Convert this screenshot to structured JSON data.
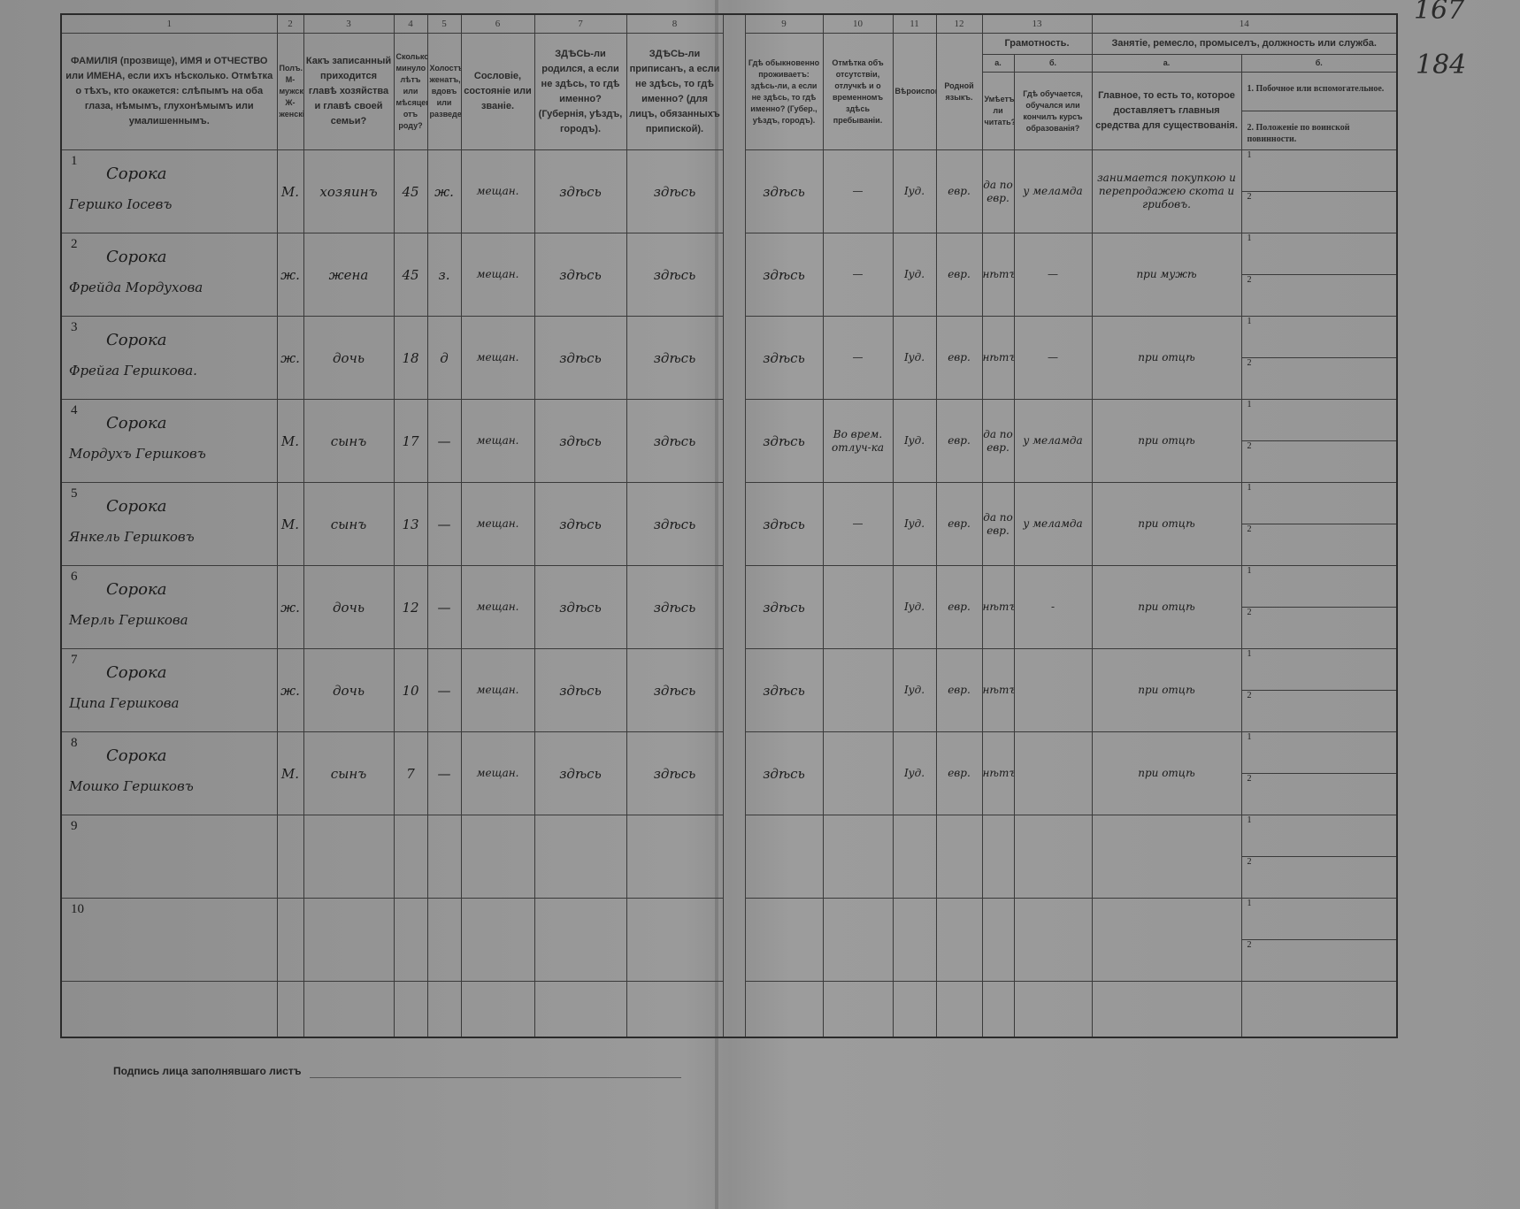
{
  "page_numbers": {
    "top": "167",
    "side": "184"
  },
  "header": {
    "col_numbers": [
      "1",
      "2",
      "3",
      "4",
      "5",
      "6",
      "7",
      "8",
      "9",
      "10",
      "11",
      "12",
      "13",
      "14"
    ],
    "c1": "ФАМИЛІЯ (прозвище), ИМЯ и ОТЧЕСТВО или ИМЕНА, если ихъ нѣсколько. Отмѣтка о тѣхъ, кто окажется: слѣпымъ на оба глаза, нѣмымъ, глухонѣмымъ или умалишеннымъ.",
    "c2": "Полъ. М-мужской. Ж-женскій.",
    "c3": "Какъ записанный приходится главѣ хозяйства и главѣ своей семьи?",
    "c4": "Сколько минуло лѣтъ или мѣсяцевъ отъ роду?",
    "c5": "Холостъ, женатъ, вдовъ или разведенъ.",
    "c6": "Сословіе, состояніе или званіе.",
    "c7": "ЗДѢСЬ-ли родился, а если не здѣсь, то гдѣ именно? (Губернія, уѣздъ, городъ).",
    "c8": "ЗДѢСЬ-ли приписанъ, а если не здѣсь, то гдѣ именно? (для лицъ, обязанныхъ припиской).",
    "c9": "Гдѣ обыкновенно проживаетъ: здѣсь-ли, а если не здѣсь, то гдѣ именно? (Губер., уѣздъ, городъ).",
    "c10": "Отмѣтка объ отсутствіи, отлучкѣ и о временномъ здѣсь пребываніи.",
    "c11": "Вѣроисповѣданіе.",
    "c12": "Родной языкъ.",
    "c13": "Грамотность.",
    "c13a_letter": "а.",
    "c13b_letter": "б.",
    "c13a": "Умѣетъ-ли читать?",
    "c13b": "Гдѣ обучается, обучался или кончилъ курсъ образованія?",
    "c14": "Занятіе, ремесло, промыселъ, должность или служба.",
    "c14a_letter": "а.",
    "c14b_letter": "б.",
    "c14a": "Главное, то есть то, которое доставляетъ главныя средства для существованія.",
    "c14b_1": "1. Побочное или вспомогательное.",
    "c14b_2": "2. Положеніе по воинской повинности."
  },
  "sub_labels": [
    "1",
    "2"
  ],
  "rows": [
    {
      "n": "1",
      "surname": "Сорока",
      "name": "Гершко Іосевъ",
      "sex": "М.",
      "relation": "хозяинъ",
      "age": "45",
      "marital": "ж.",
      "estate": "мещан.",
      "born": "здѣсь",
      "registered": "здѣсь",
      "resides": "здѣсь",
      "absence": "—",
      "religion": "Іуд.",
      "language": "евр.",
      "literate": "да по евр.",
      "education": "у меламда",
      "occupation": "занимается покупкою и перепродажею скота и грибовъ."
    },
    {
      "n": "2",
      "surname": "Сорока",
      "name": "Фрейда Мордухова",
      "sex": "ж.",
      "relation": "жена",
      "age": "45",
      "marital": "з.",
      "estate": "мещан.",
      "born": "здѣсь",
      "registered": "здѣсь",
      "resides": "здѣсь",
      "absence": "—",
      "religion": "Іуд.",
      "language": "евр.",
      "literate": "нѣтъ",
      "education": "—",
      "occupation": "при мужѣ"
    },
    {
      "n": "3",
      "surname": "Сорока",
      "name": "Фрейга Гершкова.",
      "sex": "ж.",
      "relation": "дочь",
      "age": "18",
      "marital": "д",
      "estate": "мещан.",
      "born": "здѣсь",
      "registered": "здѣсь",
      "resides": "здѣсь",
      "absence": "—",
      "religion": "Іуд.",
      "language": "евр.",
      "literate": "нѣтъ",
      "education": "—",
      "occupation": "при отцѣ"
    },
    {
      "n": "4",
      "surname": "Сорока",
      "name": "Мордухъ Гершковъ",
      "sex": "М.",
      "relation": "сынъ",
      "age": "17",
      "marital": "—",
      "estate": "мещан.",
      "born": "здѣсь",
      "registered": "здѣсь",
      "resides": "здѣсь",
      "absence": "Во врем. отлуч-ка",
      "religion": "Іуд.",
      "language": "евр.",
      "literate": "да по евр.",
      "education": "у меламда",
      "occupation": "при отцѣ"
    },
    {
      "n": "5",
      "surname": "Сорока",
      "name": "Янкель Гершковъ",
      "sex": "М.",
      "relation": "сынъ",
      "age": "13",
      "marital": "—",
      "estate": "мещан.",
      "born": "здѣсь",
      "registered": "здѣсь",
      "resides": "здѣсь",
      "absence": "—",
      "religion": "Іуд.",
      "language": "евр.",
      "literate": "да по евр.",
      "education": "у меламда",
      "occupation": "при отцѣ"
    },
    {
      "n": "6",
      "surname": "Сорока",
      "name": "Мерль Гершкова",
      "sex": "ж.",
      "relation": "дочь",
      "age": "12",
      "marital": "—",
      "estate": "мещан.",
      "born": "здѣсь",
      "registered": "здѣсь",
      "resides": "здѣсь",
      "absence": "",
      "religion": "Іуд.",
      "language": "евр.",
      "literate": "нѣтъ",
      "education": "-",
      "occupation": "при отцѣ"
    },
    {
      "n": "7",
      "surname": "Сорока",
      "name": "Ципа Гершкова",
      "sex": "ж.",
      "relation": "дочь",
      "age": "10",
      "marital": "—",
      "estate": "мещан.",
      "born": "здѣсь",
      "registered": "здѣсь",
      "resides": "здѣсь",
      "absence": "",
      "religion": "Іуд.",
      "language": "евр.",
      "literate": "нѣтъ",
      "education": "",
      "occupation": "при отцѣ"
    },
    {
      "n": "8",
      "surname": "Сорока",
      "name": "Мошко Гершковъ",
      "sex": "М.",
      "relation": "сынъ",
      "age": "7",
      "marital": "—",
      "estate": "мещан.",
      "born": "здѣсь",
      "registered": "здѣсь",
      "resides": "здѣсь",
      "absence": "",
      "religion": "Іуд.",
      "language": "евр.",
      "literate": "нѣтъ",
      "education": "",
      "occupation": "при отцѣ"
    },
    {
      "n": "9",
      "surname": "",
      "name": "",
      "sex": "",
      "relation": "",
      "age": "",
      "marital": "",
      "estate": "",
      "born": "",
      "registered": "",
      "resides": "",
      "absence": "",
      "religion": "",
      "language": "",
      "literate": "",
      "education": "",
      "occupation": ""
    },
    {
      "n": "10",
      "surname": "",
      "name": "",
      "sex": "",
      "relation": "",
      "age": "",
      "marital": "",
      "estate": "",
      "born": "",
      "registered": "",
      "resides": "",
      "absence": "",
      "religion": "",
      "language": "",
      "literate": "",
      "education": "",
      "occupation": ""
    }
  ],
  "footer": {
    "signature_label": "Подпись лица заполнявшаго листъ"
  }
}
